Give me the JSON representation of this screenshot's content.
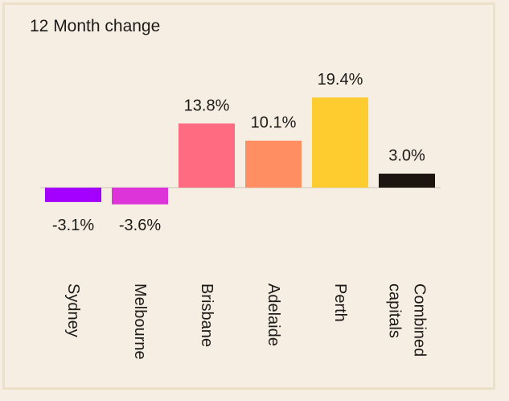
{
  "chart_data": {
    "type": "bar",
    "title": "12 Month change",
    "categories": [
      "Sydney",
      "Melbourne",
      "Brisbane",
      "Adelaide",
      "Perth",
      [
        "Combined",
        "capitals"
      ]
    ],
    "values": [
      -3.1,
      -3.6,
      13.8,
      10.1,
      19.4,
      3.0
    ],
    "value_labels": [
      "-3.1%",
      "-3.6%",
      "13.8%",
      "10.1%",
      "19.4%",
      "3.0%"
    ],
    "colors": [
      "#a400ff",
      "#dc34d8",
      "#ff6b80",
      "#ff8f62",
      "#ffcc2f",
      "#1d1610"
    ],
    "baseline_color": "#d8d2c6",
    "xlabel": "",
    "ylabel": "",
    "grid": false,
    "legend": "none"
  }
}
